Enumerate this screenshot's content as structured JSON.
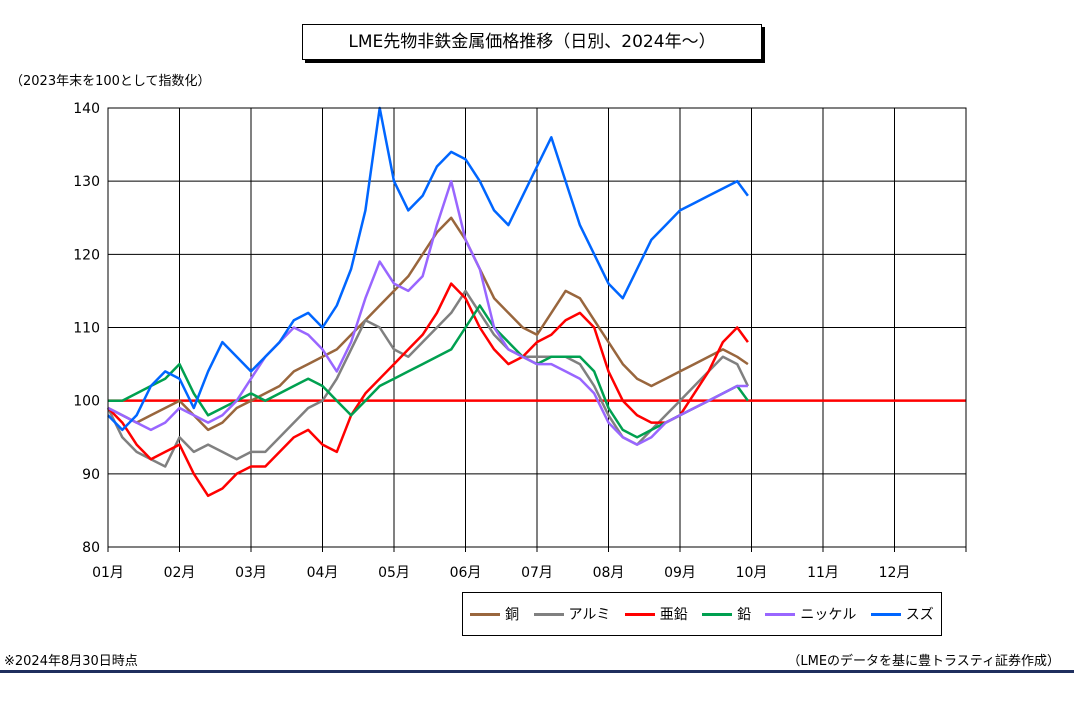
{
  "title": "LME先物非鉄金属価格推移（日別、2024年～）",
  "unit_note": "（2023年末を100として指数化）",
  "footnote": "※2024年8月30日時点",
  "source": "（LMEのデータを基に豊トラスティ証券作成）",
  "chart_data": {
    "type": "line",
    "title": "LME先物非鉄金属価格推移（日別、2024年～）",
    "ylabel": "（2023年末を100として指数化）",
    "xlabel": "",
    "ylim": [
      80,
      140
    ],
    "yticks": [
      "140",
      "130",
      "120",
      "110",
      "100",
      "90",
      "80"
    ],
    "xlim": [
      0,
      12
    ],
    "xticks": [
      "01月",
      "02月",
      "03月",
      "04月",
      "05月",
      "06月",
      "07月",
      "08月",
      "09月",
      "10月",
      "11月",
      "12月"
    ],
    "grid": true,
    "legend_position": "bottom-right",
    "reference_line": {
      "y": 100,
      "color": "#ff0000"
    },
    "series": [
      {
        "name": "銅",
        "color": "#99663d",
        "x": [
          0,
          0.2,
          0.4,
          0.6,
          0.8,
          1.0,
          1.2,
          1.4,
          1.6,
          1.8,
          2.0,
          2.2,
          2.4,
          2.6,
          2.8,
          3.0,
          3.2,
          3.4,
          3.6,
          3.8,
          4.0,
          4.2,
          4.4,
          4.6,
          4.8,
          5.0,
          5.2,
          5.4,
          5.6,
          5.8,
          6.0,
          6.2,
          6.4,
          6.6,
          6.8,
          7.0,
          7.2,
          7.4,
          7.6,
          7.8,
          8.0,
          8.2,
          8.4,
          8.6,
          8.8,
          8.95
        ],
        "values": [
          99,
          98,
          97,
          98,
          99,
          100,
          98,
          96,
          97,
          99,
          100,
          101,
          102,
          104,
          105,
          106,
          107,
          109,
          111,
          113,
          115,
          117,
          120,
          123,
          125,
          122,
          118,
          114,
          112,
          110,
          109,
          112,
          115,
          114,
          111,
          108,
          105,
          103,
          102,
          103,
          104,
          105,
          106,
          107,
          106,
          105
        ]
      },
      {
        "name": "アルミ",
        "color": "#808080",
        "x": [
          0,
          0.2,
          0.4,
          0.6,
          0.8,
          1.0,
          1.2,
          1.4,
          1.6,
          1.8,
          2.0,
          2.2,
          2.4,
          2.6,
          2.8,
          3.0,
          3.2,
          3.4,
          3.6,
          3.8,
          4.0,
          4.2,
          4.4,
          4.6,
          4.8,
          5.0,
          5.2,
          5.4,
          5.6,
          5.8,
          6.0,
          6.2,
          6.4,
          6.6,
          6.8,
          7.0,
          7.2,
          7.4,
          7.6,
          7.8,
          8.0,
          8.2,
          8.4,
          8.6,
          8.8,
          8.95
        ],
        "values": [
          99,
          95,
          93,
          92,
          91,
          95,
          93,
          94,
          93,
          92,
          93,
          93,
          95,
          97,
          99,
          100,
          103,
          107,
          111,
          110,
          107,
          106,
          108,
          110,
          112,
          115,
          112,
          109,
          107,
          106,
          106,
          106,
          106,
          105,
          102,
          98,
          95,
          94,
          96,
          98,
          100,
          102,
          104,
          106,
          105,
          102
        ]
      },
      {
        "name": "亜鉛",
        "color": "#ff0000",
        "x": [
          0,
          0.2,
          0.4,
          0.6,
          0.8,
          1.0,
          1.2,
          1.4,
          1.6,
          1.8,
          2.0,
          2.2,
          2.4,
          2.6,
          2.8,
          3.0,
          3.2,
          3.4,
          3.6,
          3.8,
          4.0,
          4.2,
          4.4,
          4.6,
          4.8,
          5.0,
          5.2,
          5.4,
          5.6,
          5.8,
          6.0,
          6.2,
          6.4,
          6.6,
          6.8,
          7.0,
          7.2,
          7.4,
          7.6,
          7.8,
          8.0,
          8.2,
          8.4,
          8.6,
          8.8,
          8.95
        ],
        "values": [
          99,
          97,
          94,
          92,
          93,
          94,
          90,
          87,
          88,
          90,
          91,
          91,
          93,
          95,
          96,
          94,
          93,
          98,
          101,
          103,
          105,
          107,
          109,
          112,
          116,
          114,
          110,
          107,
          105,
          106,
          108,
          109,
          111,
          112,
          110,
          104,
          100,
          98,
          97,
          97,
          98,
          101,
          104,
          108,
          110,
          108
        ]
      },
      {
        "name": "鉛",
        "color": "#00a050",
        "x": [
          0,
          0.2,
          0.4,
          0.6,
          0.8,
          1.0,
          1.2,
          1.4,
          1.6,
          1.8,
          2.0,
          2.2,
          2.4,
          2.6,
          2.8,
          3.0,
          3.2,
          3.4,
          3.6,
          3.8,
          4.0,
          4.2,
          4.4,
          4.6,
          4.8,
          5.0,
          5.2,
          5.4,
          5.6,
          5.8,
          6.0,
          6.2,
          6.4,
          6.6,
          6.8,
          7.0,
          7.2,
          7.4,
          7.6,
          7.8,
          8.0,
          8.2,
          8.4,
          8.6,
          8.8,
          8.95
        ],
        "values": [
          100,
          100,
          101,
          102,
          103,
          105,
          101,
          98,
          99,
          100,
          101,
          100,
          101,
          102,
          103,
          102,
          100,
          98,
          100,
          102,
          103,
          104,
          105,
          106,
          107,
          110,
          113,
          110,
          108,
          106,
          105,
          106,
          106,
          106,
          104,
          99,
          96,
          95,
          96,
          97,
          98,
          99,
          100,
          101,
          102,
          100
        ]
      },
      {
        "name": "ニッケル",
        "color": "#9966ff",
        "x": [
          0,
          0.2,
          0.4,
          0.6,
          0.8,
          1.0,
          1.2,
          1.4,
          1.6,
          1.8,
          2.0,
          2.2,
          2.4,
          2.6,
          2.8,
          3.0,
          3.2,
          3.4,
          3.6,
          3.8,
          4.0,
          4.2,
          4.4,
          4.6,
          4.8,
          5.0,
          5.2,
          5.4,
          5.6,
          5.8,
          6.0,
          6.2,
          6.4,
          6.6,
          6.8,
          7.0,
          7.2,
          7.4,
          7.6,
          7.8,
          8.0,
          8.2,
          8.4,
          8.6,
          8.8,
          8.95
        ],
        "values": [
          99,
          98,
          97,
          96,
          97,
          99,
          98,
          97,
          98,
          100,
          103,
          106,
          108,
          110,
          109,
          107,
          104,
          108,
          114,
          119,
          116,
          115,
          117,
          124,
          130,
          122,
          118,
          110,
          107,
          106,
          105,
          105,
          104,
          103,
          101,
          97,
          95,
          94,
          95,
          97,
          98,
          99,
          100,
          101,
          102,
          102
        ]
      },
      {
        "name": "スズ",
        "color": "#0066ff",
        "x": [
          0,
          0.2,
          0.4,
          0.6,
          0.8,
          1.0,
          1.2,
          1.4,
          1.6,
          1.8,
          2.0,
          2.2,
          2.4,
          2.6,
          2.8,
          3.0,
          3.2,
          3.4,
          3.6,
          3.8,
          4.0,
          4.2,
          4.4,
          4.6,
          4.8,
          5.0,
          5.2,
          5.4,
          5.6,
          5.8,
          6.0,
          6.2,
          6.4,
          6.6,
          6.8,
          7.0,
          7.2,
          7.4,
          7.6,
          7.8,
          8.0,
          8.2,
          8.4,
          8.6,
          8.8,
          8.95
        ],
        "values": [
          98,
          96,
          98,
          102,
          104,
          103,
          99,
          104,
          108,
          106,
          104,
          106,
          108,
          111,
          112,
          110,
          113,
          118,
          126,
          140,
          130,
          126,
          128,
          132,
          134,
          133,
          130,
          126,
          124,
          128,
          132,
          136,
          130,
          124,
          120,
          116,
          114,
          118,
          122,
          124,
          126,
          127,
          128,
          129,
          130,
          128
        ]
      }
    ]
  }
}
